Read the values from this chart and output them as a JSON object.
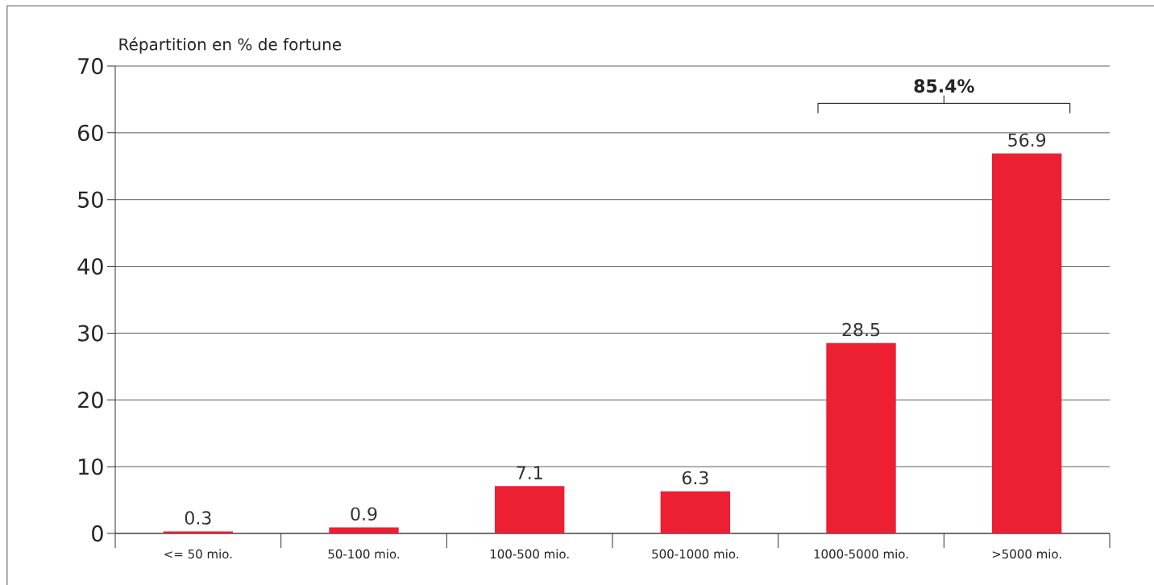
{
  "chart_data": {
    "type": "bar",
    "ylabel": "Répartition en % de fortune",
    "categories": [
      "<= 50 mio.",
      "50-100 mio.",
      "100-500 mio.",
      "500-1000 mio.",
      "1000-5000 mio.",
      ">5000 mio."
    ],
    "values": [
      0.3,
      0.9,
      7.1,
      6.3,
      28.5,
      56.9
    ],
    "color": "#ed1f33",
    "ylim": [
      0,
      70
    ],
    "yticks": [
      0,
      10,
      20,
      30,
      40,
      50,
      60,
      70
    ],
    "grid": "y",
    "data_labels": true,
    "annotations": [
      "**85.4%**"
    ]
  }
}
